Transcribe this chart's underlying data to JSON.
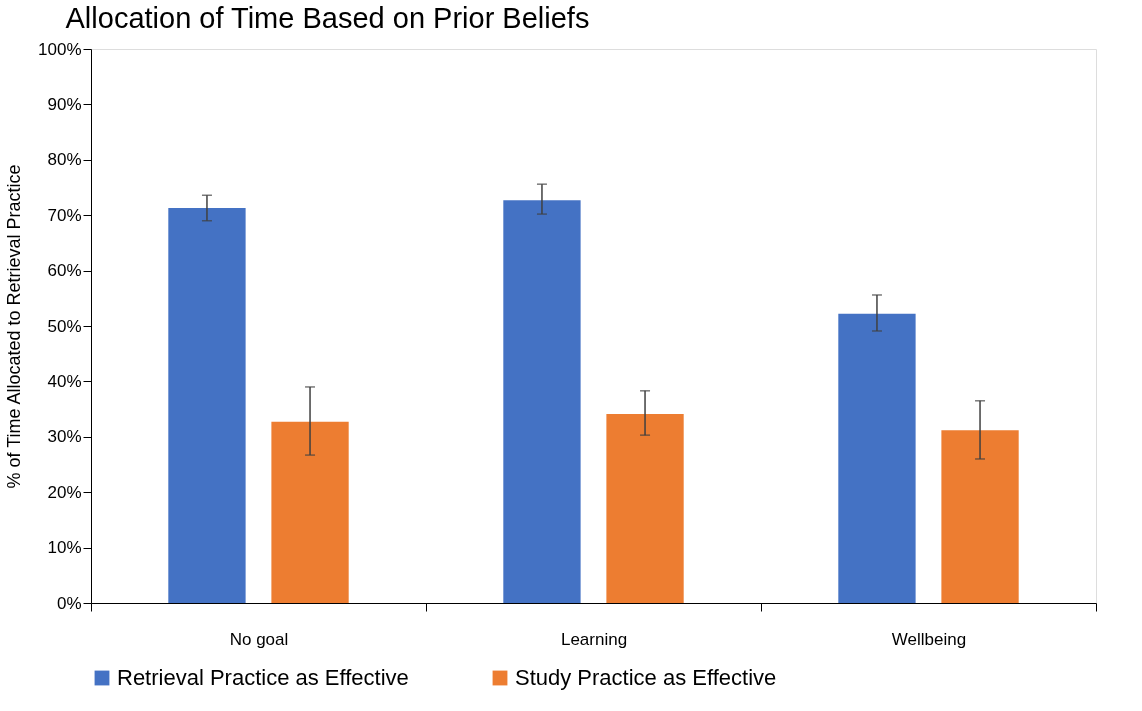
{
  "chart_data": {
    "type": "bar",
    "title": "Allocation of Time Based on Prior Beliefs",
    "ylabel": "% of Time Allocated to Retrieval Practice",
    "categories": [
      "No goal",
      "Learning",
      "Wellbeing"
    ],
    "series": [
      {
        "name": "Retrieval Practice as Effective",
        "color": "#4472c4",
        "values": [
          71.3,
          72.7,
          52.2
        ],
        "errors": [
          [
            69.0,
            73.6
          ],
          [
            70.2,
            75.6
          ],
          [
            49.1,
            55.6
          ]
        ]
      },
      {
        "name": "Study Practice as Effective",
        "color": "#ed7d31",
        "values": [
          32.7,
          34.1,
          31.2
        ],
        "errors": [
          [
            26.7,
            39.0
          ],
          [
            30.3,
            38.3
          ],
          [
            26.0,
            36.5
          ]
        ]
      }
    ],
    "ylim": [
      0,
      100
    ],
    "yticks": [
      {
        "value": 0,
        "label": "0%"
      },
      {
        "value": 10,
        "label": "10%"
      },
      {
        "value": 20,
        "label": "20%"
      },
      {
        "value": 30,
        "label": "30%"
      },
      {
        "value": 40,
        "label": "40%"
      },
      {
        "value": 50,
        "label": "50%"
      },
      {
        "value": 60,
        "label": "60%"
      },
      {
        "value": 70,
        "label": "70%"
      },
      {
        "value": 80,
        "label": "80%"
      },
      {
        "value": 90,
        "label": "90%"
      },
      {
        "value": 100,
        "label": "100%"
      }
    ],
    "grid": false,
    "legend": "bottom"
  }
}
